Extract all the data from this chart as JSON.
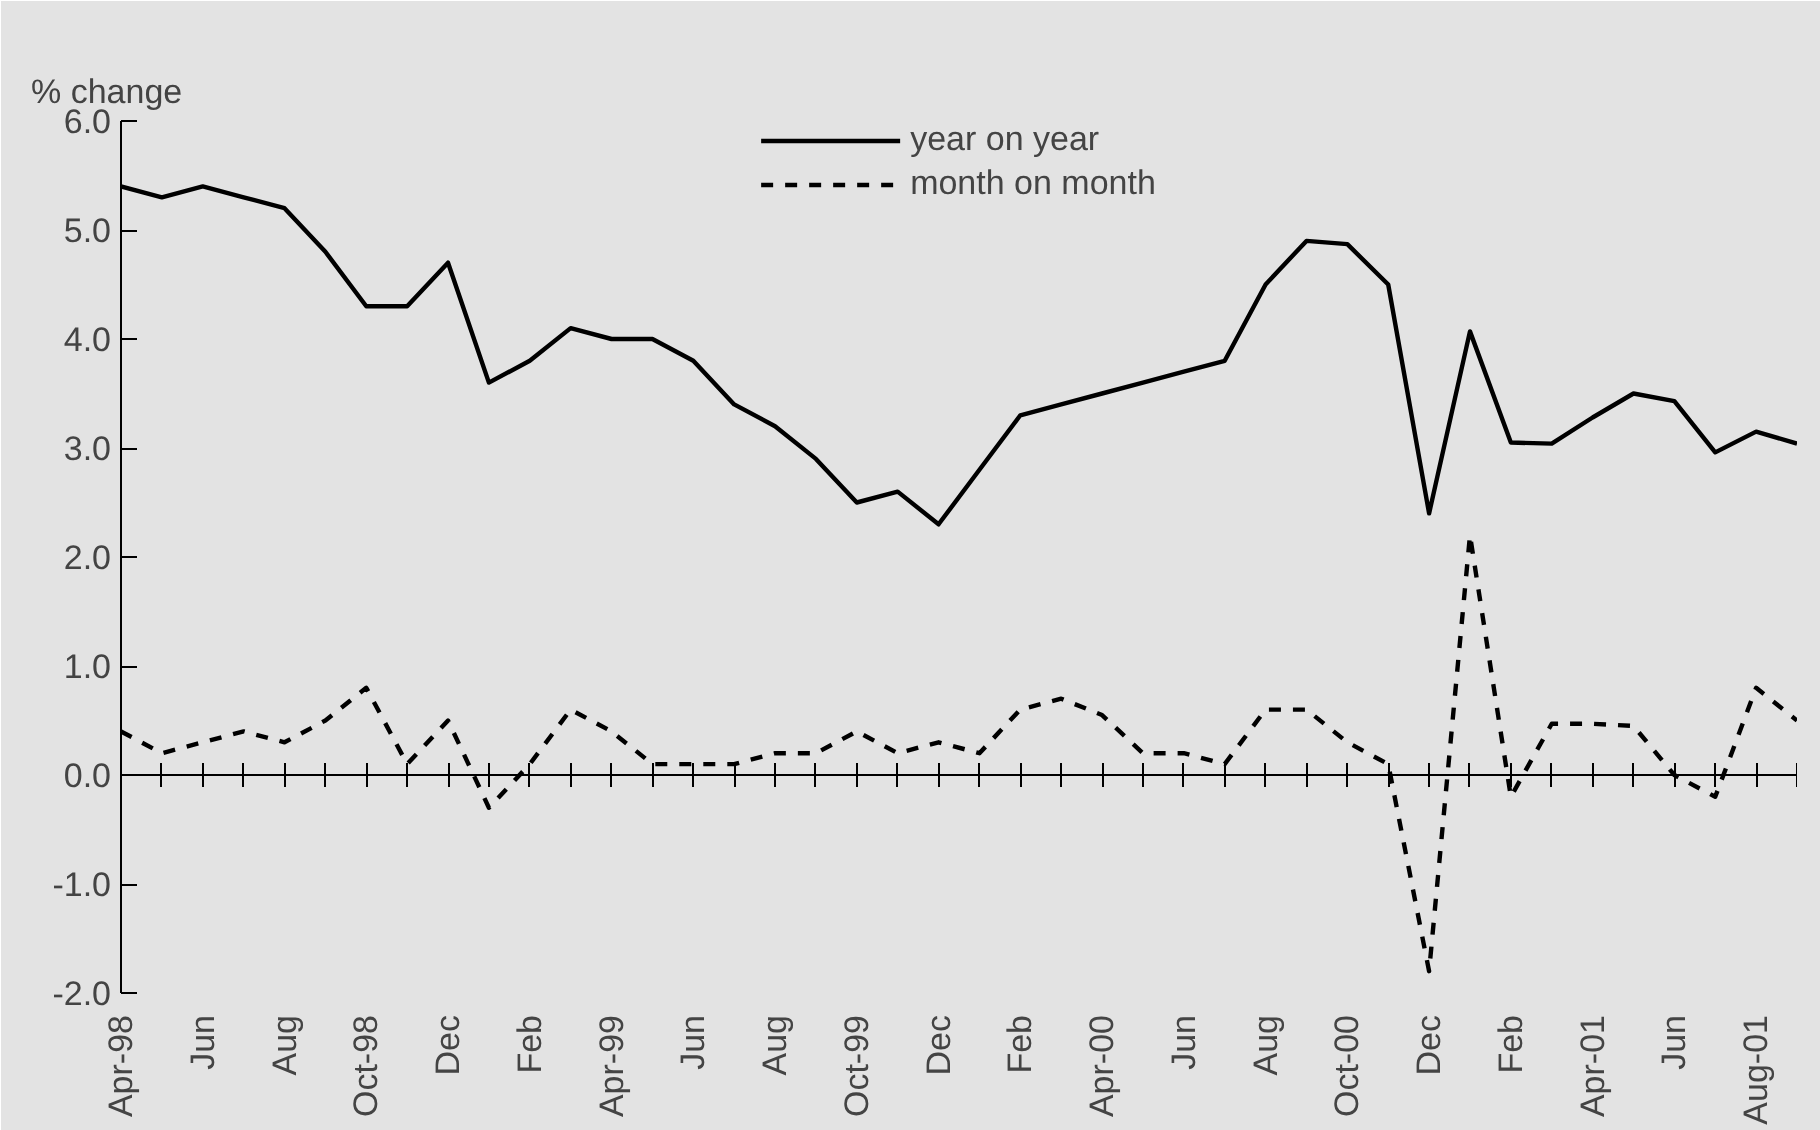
{
  "chart_data": {
    "type": "line",
    "ylabel": "% change",
    "categories": [
      "Apr-98",
      null,
      "Jun",
      null,
      "Aug",
      null,
      "Oct-98",
      null,
      "Dec",
      null,
      "Feb",
      null,
      "Apr-99",
      null,
      "Jun",
      null,
      "Aug",
      null,
      "Oct-99",
      null,
      "Dec",
      null,
      "Feb",
      null,
      "Apr-00",
      null,
      "Jun",
      null,
      "Aug",
      null,
      "Oct-00",
      null,
      "Dec",
      null,
      "Feb",
      null,
      "Apr-01",
      null,
      "Jun",
      null,
      "Aug-01",
      null
    ],
    "series": [
      {
        "name": "year on year",
        "color": "#000000",
        "line_style": "solid",
        "values": [
          5.4,
          5.3,
          5.4,
          5.3,
          5.2,
          4.8,
          4.3,
          4.3,
          4.7,
          3.6,
          3.8,
          4.1,
          4.0,
          4.0,
          3.8,
          3.4,
          3.2,
          2.9,
          2.5,
          2.6,
          2.3,
          2.8,
          3.3,
          3.4,
          3.5,
          3.6,
          3.7,
          3.8,
          4.5,
          4.9,
          4.87,
          4.5,
          2.4,
          4.07,
          3.05,
          3.04,
          3.28,
          3.5,
          3.43,
          2.96,
          3.15,
          3.04
        ]
      },
      {
        "name": "month on month",
        "color": "#000000",
        "line_style": "dashed",
        "values": [
          0.4,
          0.2,
          0.3,
          0.4,
          0.3,
          0.5,
          0.8,
          0.1,
          0.5,
          -0.3,
          0.1,
          0.6,
          0.4,
          0.1,
          0.1,
          0.1,
          0.2,
          0.2,
          0.4,
          0.2,
          0.3,
          0.2,
          0.6,
          0.7,
          0.55,
          0.2,
          0.2,
          0.1,
          0.6,
          0.6,
          0.3,
          0.1,
          -1.8,
          2.2,
          -0.2,
          0.47,
          0.47,
          0.45,
          0.0,
          -0.2,
          0.8,
          0.5
        ]
      }
    ],
    "ylim": [
      -2,
      6
    ],
    "yticks": [
      {
        "value": -2,
        "label": "-2.0"
      },
      {
        "value": -1,
        "label": "-1.0"
      },
      {
        "value": 0,
        "label": "0.0"
      },
      {
        "value": 1,
        "label": "1.0"
      },
      {
        "value": 2,
        "label": "2.0"
      },
      {
        "value": 3,
        "label": "3.0"
      },
      {
        "value": 4,
        "label": "4.0"
      },
      {
        "value": 5,
        "label": "5.0"
      },
      {
        "value": 6,
        "label": "6.0"
      }
    ],
    "legend": "top"
  }
}
